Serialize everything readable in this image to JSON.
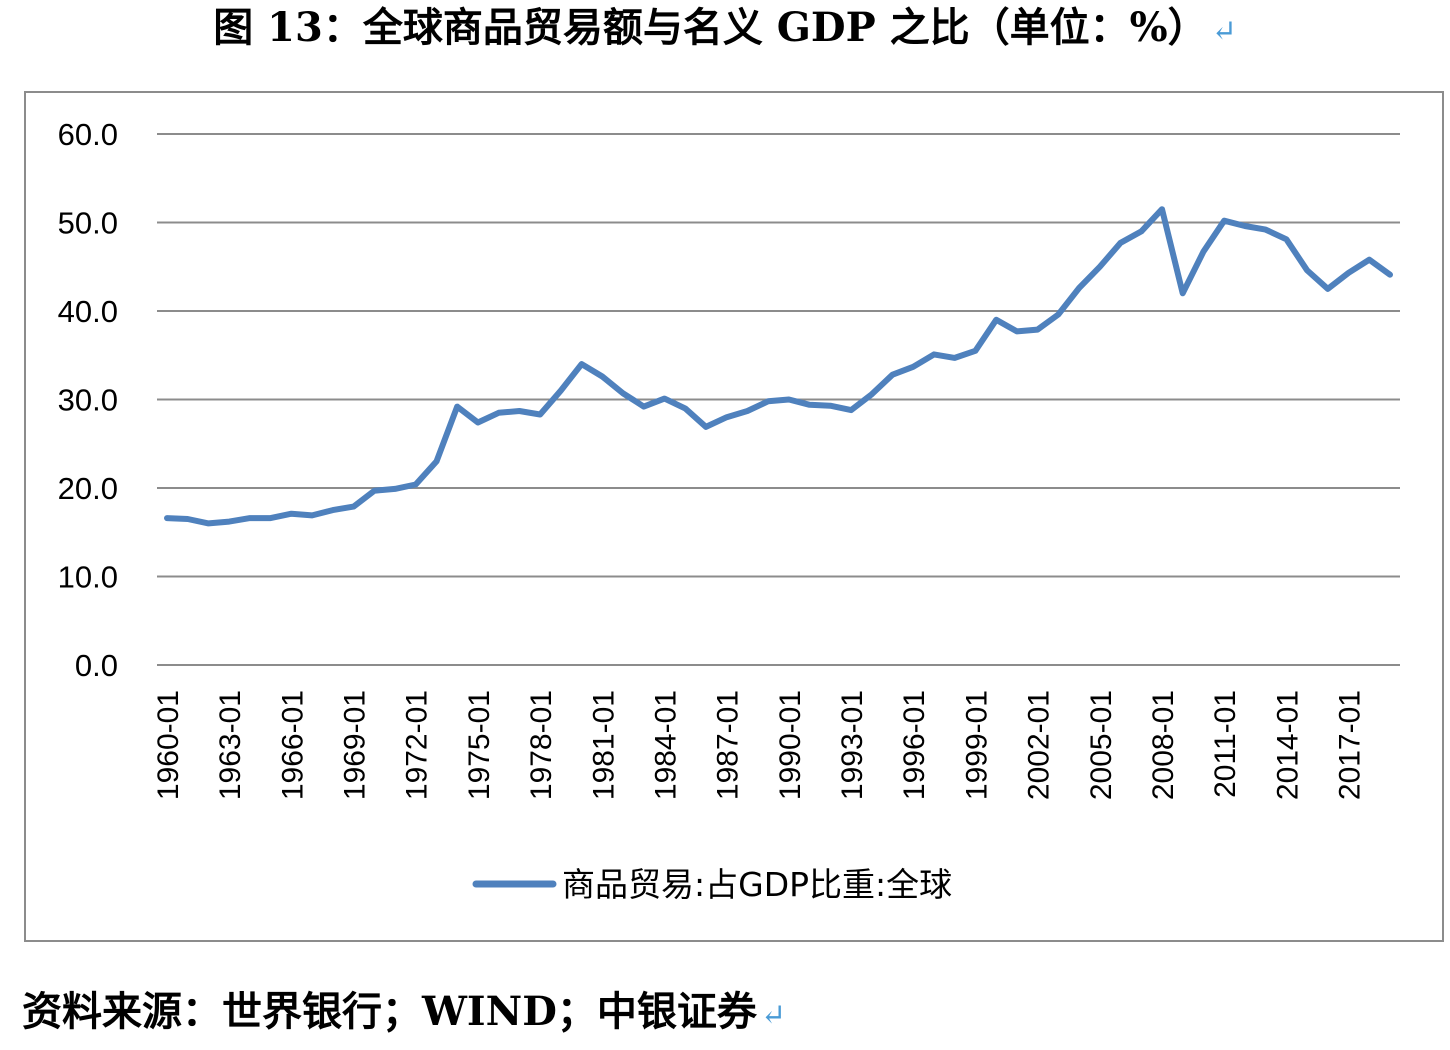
{
  "title": "图 13：全球商品贸易额与名义 GDP 之比（单位：%）",
  "source": "资料来源：世界银行；WIND；中银证券",
  "return_mark": "↵",
  "colors": {
    "series": "#4f81bd",
    "grid": "#8c8c8c",
    "frame": "#8c8c8c",
    "return_mark": "#4a9bd6"
  },
  "chart_data": {
    "type": "line",
    "title": "",
    "xlabel": "",
    "ylabel": "",
    "ylim": [
      0,
      60
    ],
    "yticks": [
      "0.0",
      "10.0",
      "20.0",
      "30.0",
      "40.0",
      "50.0",
      "60.0"
    ],
    "xtick_labels": [
      "1960-01",
      "1963-01",
      "1966-01",
      "1969-01",
      "1972-01",
      "1975-01",
      "1978-01",
      "1981-01",
      "1984-01",
      "1987-01",
      "1990-01",
      "1993-01",
      "1996-01",
      "1999-01",
      "2002-01",
      "2005-01",
      "2008-01",
      "2011-01",
      "2014-01",
      "2017-01"
    ],
    "grid": true,
    "legend_position": "bottom",
    "categories": [
      "1960-01",
      "1961-01",
      "1962-01",
      "1963-01",
      "1964-01",
      "1965-01",
      "1966-01",
      "1967-01",
      "1968-01",
      "1969-01",
      "1970-01",
      "1971-01",
      "1972-01",
      "1973-01",
      "1974-01",
      "1975-01",
      "1976-01",
      "1977-01",
      "1978-01",
      "1979-01",
      "1980-01",
      "1981-01",
      "1982-01",
      "1983-01",
      "1984-01",
      "1985-01",
      "1986-01",
      "1987-01",
      "1988-01",
      "1989-01",
      "1990-01",
      "1991-01",
      "1992-01",
      "1993-01",
      "1994-01",
      "1995-01",
      "1996-01",
      "1997-01",
      "1998-01",
      "1999-01",
      "2000-01",
      "2001-01",
      "2002-01",
      "2003-01",
      "2004-01",
      "2005-01",
      "2006-01",
      "2007-01",
      "2008-01",
      "2009-01",
      "2010-01",
      "2011-01",
      "2012-01",
      "2013-01",
      "2014-01",
      "2015-01",
      "2016-01",
      "2017-01",
      "2018-01",
      "2019-01"
    ],
    "series": [
      {
        "name": "商品贸易:占GDP比重:全球",
        "values": [
          16.6,
          16.5,
          16.0,
          16.2,
          16.6,
          16.6,
          17.1,
          16.9,
          17.5,
          17.9,
          19.7,
          19.9,
          20.4,
          23.0,
          29.2,
          27.4,
          28.5,
          28.7,
          28.3,
          31.0,
          34.0,
          32.6,
          30.7,
          29.2,
          30.1,
          29.0,
          26.9,
          28.0,
          28.7,
          29.8,
          30.0,
          29.4,
          29.3,
          28.8,
          30.6,
          32.8,
          33.7,
          35.1,
          34.7,
          35.5,
          39.0,
          37.7,
          37.9,
          39.6,
          42.6,
          45.0,
          47.7,
          49.0,
          51.5,
          42.0,
          46.7,
          50.2,
          49.6,
          49.2,
          48.1,
          44.6,
          42.5,
          44.3,
          45.8,
          44.1
        ]
      }
    ]
  }
}
